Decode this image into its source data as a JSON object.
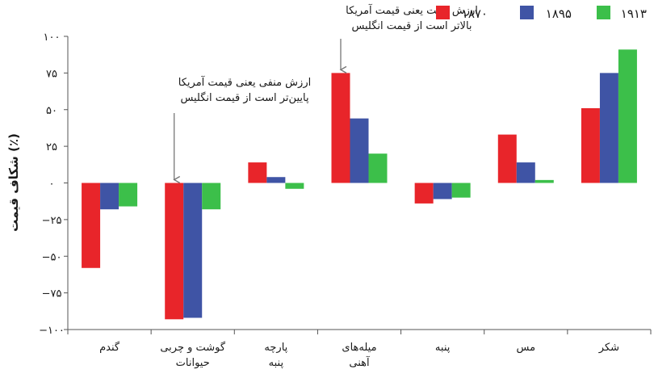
{
  "colors": {
    "series_1870": "#e8252a",
    "series_1895": "#3f54a5",
    "series_1913": "#3cbf4a",
    "axis": "#555555",
    "annotation_arrow": "#777777"
  },
  "chart_data": {
    "type": "bar",
    "ylabel": "شکاف قیمت (٪)",
    "ylim": [
      -100,
      100
    ],
    "y_ticks": [
      {
        "value": 100,
        "label": "۱۰۰"
      },
      {
        "value": 75,
        "label": "۷۵"
      },
      {
        "value": 50,
        "label": "۵۰"
      },
      {
        "value": 25,
        "label": "۲۵"
      },
      {
        "value": 0,
        "label": "۰"
      },
      {
        "value": -25,
        "label": "−۲۵"
      },
      {
        "value": -50,
        "label": "−۵۰"
      },
      {
        "value": -75,
        "label": "−۷۵"
      },
      {
        "value": -100,
        "label": "−۱۰۰"
      }
    ],
    "categories": [
      [
        "گندم"
      ],
      [
        "گوشت و چربی",
        "حیوانات"
      ],
      [
        "پارچه",
        "پنبه"
      ],
      [
        "میله‌های",
        "آهنی"
      ],
      [
        "پنبه"
      ],
      [
        "مس"
      ],
      [
        "شکر"
      ]
    ],
    "series": [
      {
        "name": "۱۸۷۰",
        "color": "#e8252a",
        "values": [
          -58,
          -93,
          14,
          75,
          -14,
          33,
          51
        ]
      },
      {
        "name": "۱۸۹۵",
        "color": "#3f54a5",
        "values": [
          -18,
          -92,
          4,
          44,
          -11,
          14,
          75
        ]
      },
      {
        "name": "۱۹۱۳",
        "color": "#3cbf4a",
        "values": [
          -16,
          -18,
          -4,
          20,
          -10,
          2,
          91
        ]
      }
    ],
    "legend_position": "top-right",
    "grid": false,
    "annotations": [
      {
        "lines": [
          "ارزش مثبت یعنی قیمت آمریکا",
          "بالاتر است از قیمت انگلیس"
        ],
        "category_index": 3,
        "series_index": 0
      },
      {
        "lines": [
          "ارزش منفی یعنی قیمت آمریکا",
          "پایین‌تر است از قیمت انگلیس"
        ],
        "category_index": 1,
        "series_index": 0
      }
    ]
  }
}
